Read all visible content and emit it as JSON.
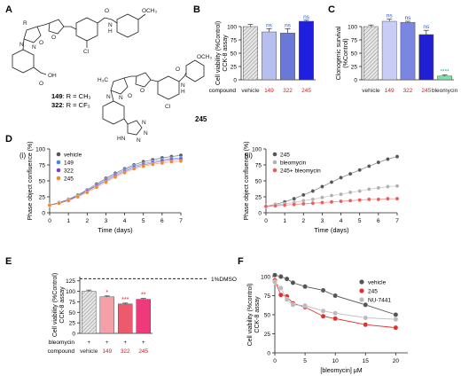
{
  "panel_letters": {
    "A": "A",
    "B": "B",
    "C": "C",
    "D": "D",
    "E": "E",
    "F": "F"
  },
  "structures": {
    "compound_149_322": {
      "label_149": "149",
      "label_322": "322",
      "text_149": ": R = CH₃",
      "text_322": ": R = CF₃",
      "atoms": [
        "OCH₃",
        "O",
        "N",
        "H",
        "O",
        "N",
        "N",
        "R",
        "O",
        "Cl",
        "OH",
        "O"
      ]
    },
    "compound_245": {
      "label": "245",
      "atoms": [
        "OCH₃",
        "H₃C",
        "O",
        "N",
        "H",
        "O",
        "N",
        "N",
        "Cl",
        "O",
        "N",
        "N",
        "N",
        "HN"
      ]
    }
  },
  "chart_data": [
    {
      "id": "B",
      "type": "bar",
      "ylabel": "Cell viability (%Control)",
      "ylabel2": "CCK-8 assay",
      "ylim": [
        0,
        100
      ],
      "yticks": [
        "0",
        "25",
        "50",
        "75",
        "100"
      ],
      "row_label": "compound",
      "categories": [
        "vehicle",
        "149",
        "322",
        "245"
      ],
      "values": [
        100,
        90,
        88,
        110
      ],
      "errors": [
        4,
        6,
        8,
        2
      ],
      "annotations": [
        "",
        "ns",
        "ns",
        "ns"
      ],
      "colors": {
        "vehicle": "#d8d8d8",
        "149": "#b7bfee",
        "322": "#6a78d8",
        "245": "#1f1fe0",
        "label_red": "#d62020",
        "ns": "#2a52d0"
      }
    },
    {
      "id": "C",
      "type": "bar",
      "ylabel": "Clonogenic survival",
      "ylabel2": "(%Control)",
      "ylim": [
        0,
        100
      ],
      "yticks": [
        "0",
        "25",
        "50",
        "75",
        "100"
      ],
      "row_label": "compound",
      "categories": [
        "vehicle",
        "149",
        "322",
        "245",
        "bleomycin"
      ],
      "values": [
        100,
        110,
        108,
        85,
        7
      ],
      "errors": [
        3,
        4,
        2,
        8,
        2
      ],
      "annotations": [
        "",
        "ns",
        "ns",
        "ns",
        "****"
      ],
      "colors": {
        "vehicle": "#d8d8d8",
        "149": "#c9cdf6",
        "322": "#7b86e3",
        "245": "#2020d2",
        "bleomycin": "#7fe0a8",
        "stars": "#19b36b"
      }
    },
    {
      "id": "D_i",
      "type": "line",
      "panel_label": "(i)",
      "xlabel": "Time (days)",
      "ylabel": "Phase object confluence (%)",
      "xlim": [
        0,
        7
      ],
      "ylim": [
        0,
        100
      ],
      "xticks": [
        "0",
        "1",
        "2",
        "3",
        "4",
        "5",
        "6",
        "7"
      ],
      "yticks": [
        "0",
        "25",
        "50",
        "75",
        "100"
      ],
      "legend": "top-left",
      "series": [
        {
          "name": "vehicle",
          "color": "#555555",
          "x": [
            0,
            0.5,
            1,
            1.5,
            2,
            2.5,
            3,
            3.5,
            4,
            4.5,
            5,
            5.5,
            6,
            6.5,
            7
          ],
          "values": [
            12,
            16,
            21,
            28,
            36,
            45,
            54,
            62,
            69,
            75,
            80,
            83,
            86,
            88,
            90
          ]
        },
        {
          "name": "149",
          "color": "#3f8ae6",
          "x": [
            0,
            0.5,
            1,
            1.5,
            2,
            2.5,
            3,
            3.5,
            4,
            4.5,
            5,
            5.5,
            6,
            6.5,
            7
          ],
          "values": [
            12,
            15,
            20,
            27,
            35,
            43,
            52,
            60,
            67,
            73,
            77,
            80,
            83,
            85,
            86
          ]
        },
        {
          "name": "322",
          "color": "#7a3fc9",
          "x": [
            0,
            0.5,
            1,
            1.5,
            2,
            2.5,
            3,
            3.5,
            4,
            4.5,
            5,
            5.5,
            6,
            6.5,
            7
          ],
          "values": [
            12,
            15,
            20,
            26,
            34,
            42,
            50,
            58,
            65,
            71,
            75,
            78,
            81,
            83,
            84
          ]
        },
        {
          "name": "245",
          "color": "#f08a2e",
          "x": [
            0,
            0.5,
            1,
            1.5,
            2,
            2.5,
            3,
            3.5,
            4,
            4.5,
            5,
            5.5,
            6,
            6.5,
            7
          ],
          "values": [
            12,
            15,
            19,
            25,
            32,
            40,
            48,
            56,
            63,
            69,
            73,
            76,
            78,
            80,
            81
          ]
        }
      ]
    },
    {
      "id": "D_ii",
      "type": "line",
      "panel_label": "(ii)",
      "xlabel": "Time (days)",
      "ylabel": "Phase object confluence (%)",
      "xlim": [
        0,
        7
      ],
      "ylim": [
        0,
        100
      ],
      "xticks": [
        "0",
        "1",
        "2",
        "3",
        "4",
        "5",
        "6",
        "7"
      ],
      "yticks": [
        "0",
        "25",
        "50",
        "75",
        "100"
      ],
      "legend": "top-left",
      "series": [
        {
          "name": "245",
          "color": "#555555",
          "x": [
            0,
            0.5,
            1,
            1.5,
            2,
            2.5,
            3,
            3.5,
            4,
            4.5,
            5,
            5.5,
            6,
            6.5,
            7
          ],
          "values": [
            10,
            13,
            17,
            22,
            28,
            34,
            41,
            48,
            55,
            61,
            67,
            73,
            79,
            84,
            88
          ]
        },
        {
          "name": "bleomycin",
          "color": "#b0b0b0",
          "x": [
            0,
            0.5,
            1,
            1.5,
            2,
            2.5,
            3,
            3.5,
            4,
            4.5,
            5,
            5.5,
            6,
            6.5,
            7
          ],
          "values": [
            10,
            12,
            14,
            16,
            19,
            21,
            24,
            27,
            29,
            32,
            34,
            37,
            39,
            41,
            42
          ]
        },
        {
          "name": "245+ bleomycin",
          "color": "#ee5a5a",
          "x": [
            0,
            0.5,
            1,
            1.5,
            2,
            2.5,
            3,
            3.5,
            4,
            4.5,
            5,
            5.5,
            6,
            6.5,
            7
          ],
          "values": [
            10,
            11,
            12,
            13,
            14,
            15,
            16,
            17,
            18,
            19,
            20,
            21,
            21,
            22,
            22
          ]
        }
      ]
    },
    {
      "id": "E",
      "type": "bar",
      "ylabel": "Cell viability (%Control)",
      "ylabel2": "CCK-8 assay",
      "ylim": [
        0,
        125
      ],
      "yticks": [
        "0",
        "25",
        "50",
        "75",
        "100",
        "125"
      ],
      "reference_line": {
        "value": 130,
        "label": "1%DMSO"
      },
      "rows": [
        {
          "label": "bleomycin",
          "values": [
            "+",
            "+",
            "+",
            "+"
          ]
        },
        {
          "label": "compound",
          "values": [
            "vehicle",
            "149",
            "322",
            "245"
          ]
        }
      ],
      "categories": [
        "vehicle",
        "149",
        "322",
        "245"
      ],
      "values": [
        100,
        87,
        70,
        81
      ],
      "errors": [
        3,
        2,
        2,
        2
      ],
      "annotations": [
        "",
        "*",
        "***",
        "**"
      ],
      "colors": {
        "vehicle": "#d8d8d8",
        "149": "#f5a0a8",
        "322": "#ec5a6e",
        "245": "#ee3a7a",
        "stars": "#d62020"
      }
    },
    {
      "id": "F",
      "type": "scatter",
      "xlabel": "[bleomycin] μM",
      "ylabel": "Cell viability (%control)",
      "ylabel2": "CCK-8 assay",
      "xlim": [
        0,
        22
      ],
      "ylim": [
        0,
        100
      ],
      "xticks": [
        "0",
        "5",
        "10",
        "15",
        "20"
      ],
      "yticks": [
        "0",
        "25",
        "50",
        "75",
        "100"
      ],
      "legend": "top-right",
      "series": [
        {
          "name": "vehicle",
          "color": "#555555",
          "x": [
            0,
            1,
            2,
            3,
            5,
            8,
            10,
            15,
            20
          ],
          "values": [
            102,
            100,
            97,
            92,
            87,
            82,
            75,
            63,
            50
          ]
        },
        {
          "name": "245",
          "color": "#e03030",
          "x": [
            0,
            1,
            2,
            3,
            5,
            8,
            10,
            15,
            20
          ],
          "values": [
            95,
            76,
            74,
            65,
            60,
            48,
            45,
            37,
            33
          ]
        },
        {
          "name": "NU-7441",
          "color": "#bbbbbb",
          "x": [
            0,
            1,
            2,
            3,
            5,
            8,
            10,
            15,
            20
          ],
          "values": [
            93,
            85,
            70,
            63,
            62,
            55,
            52,
            46,
            44
          ]
        }
      ]
    }
  ]
}
